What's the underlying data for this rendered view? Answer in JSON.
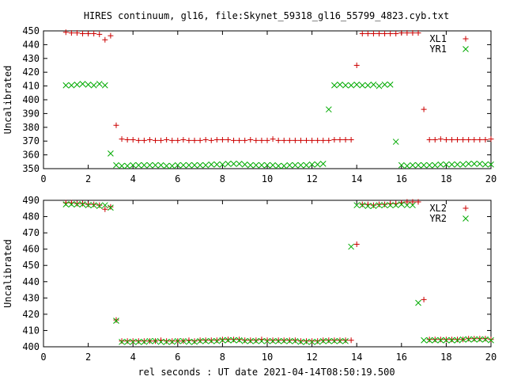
{
  "title": "HIRES continuum, gl16, file:Skynet_59318_gl16_55799_4823.cyb.txt",
  "xlabel": "rel seconds : UT date 2021-04-14T08:50:19.500",
  "chart_data": [
    {
      "type": "scatter",
      "ylabel": "Uncalibrated",
      "xlim": [
        0,
        20
      ],
      "ylim": [
        350,
        450
      ],
      "xticks": [
        0,
        2,
        4,
        6,
        8,
        10,
        12,
        14,
        16,
        18,
        20
      ],
      "yticks": [
        350,
        360,
        370,
        380,
        390,
        400,
        410,
        420,
        430,
        440,
        450
      ],
      "grid": false,
      "legend_position": "top-right",
      "series": [
        {
          "name": "XL1",
          "marker": "+",
          "color": "#cc0000",
          "x": [
            1.0,
            1.25,
            1.5,
            1.75,
            2.0,
            2.25,
            2.5,
            2.75,
            3.0,
            3.25,
            3.5,
            3.75,
            4.0,
            4.25,
            4.5,
            4.75,
            5.0,
            5.25,
            5.5,
            5.75,
            6.0,
            6.25,
            6.5,
            6.75,
            7.0,
            7.25,
            7.5,
            7.75,
            8.0,
            8.25,
            8.5,
            8.75,
            9.0,
            9.25,
            9.5,
            9.75,
            10.0,
            10.25,
            10.5,
            10.75,
            11.0,
            11.25,
            11.5,
            11.75,
            12.0,
            12.25,
            12.5,
            12.75,
            13.0,
            13.25,
            13.5,
            13.75,
            14.0,
            14.25,
            14.5,
            14.75,
            15.0,
            15.25,
            15.5,
            15.75,
            16.0,
            16.25,
            16.5,
            16.75,
            17.0,
            17.25,
            17.5,
            17.75,
            18.0,
            18.25,
            18.5,
            18.75,
            19.0,
            19.25,
            19.5,
            19.75,
            20.0
          ],
          "y": [
            449,
            448.5,
            448.5,
            448,
            448,
            448,
            447.5,
            443.5,
            446.5,
            381.5,
            371.5,
            371,
            371,
            370.5,
            370.5,
            371,
            370.5,
            370.5,
            371,
            370.5,
            370.5,
            371,
            370.5,
            370.5,
            370.5,
            371,
            370.5,
            371,
            371,
            371,
            370.5,
            370.5,
            370.5,
            371,
            370.5,
            370.5,
            370.5,
            371.5,
            370.5,
            370.5,
            370.5,
            370.5,
            370.5,
            370.5,
            370.5,
            370.5,
            370.5,
            370.5,
            371,
            371,
            371,
            371,
            425,
            448,
            448,
            448,
            448,
            448,
            448,
            448,
            448.5,
            448.5,
            448.5,
            448.5,
            393,
            371,
            371,
            371.5,
            371,
            371,
            371,
            371,
            371,
            371,
            371,
            371,
            371.5
          ]
        },
        {
          "name": "YR1",
          "marker": "x",
          "color": "#00aa00",
          "x": [
            1.0,
            1.25,
            1.5,
            1.75,
            2.0,
            2.25,
            2.5,
            2.75,
            3.0,
            3.25,
            3.5,
            3.75,
            4.0,
            4.25,
            4.5,
            4.75,
            5.0,
            5.25,
            5.5,
            5.75,
            6.0,
            6.25,
            6.5,
            6.75,
            7.0,
            7.25,
            7.5,
            7.75,
            8.0,
            8.25,
            8.5,
            8.75,
            9.0,
            9.25,
            9.5,
            9.75,
            10.0,
            10.25,
            10.5,
            10.75,
            11.0,
            11.25,
            11.5,
            11.75,
            12.0,
            12.25,
            12.5,
            12.75,
            13.0,
            13.25,
            13.5,
            13.75,
            14.0,
            14.25,
            14.5,
            14.75,
            15.0,
            15.25,
            15.5,
            15.75,
            16.0,
            16.25,
            16.5,
            16.75,
            17.0,
            17.25,
            17.5,
            17.75,
            18.0,
            18.25,
            18.5,
            18.75,
            19.0,
            19.25,
            19.5,
            19.75,
            20.0
          ],
          "y": [
            410.5,
            410.5,
            411,
            411.5,
            411,
            410.5,
            411.5,
            410.5,
            361,
            352.5,
            352,
            352,
            352.5,
            352.5,
            352.5,
            352.5,
            352.5,
            352.5,
            352,
            352,
            352.5,
            352.5,
            352.5,
            352.5,
            352.5,
            352.5,
            353,
            353,
            353,
            353.5,
            353.5,
            353.5,
            353,
            352.5,
            352.5,
            352.5,
            352.5,
            352.5,
            352,
            352,
            352.5,
            352.5,
            352.5,
            352.5,
            353,
            353,
            353.5,
            393,
            410.5,
            411,
            410.5,
            410.5,
            411,
            410.5,
            410.5,
            411,
            410,
            411,
            411,
            369.5,
            352.5,
            352,
            352.5,
            352.5,
            352.5,
            352.5,
            352.5,
            353,
            353,
            353,
            353,
            353,
            353.5,
            353.5,
            353.5,
            353,
            353
          ]
        }
      ]
    },
    {
      "type": "scatter",
      "ylabel": "Uncalibrated",
      "xlim": [
        0,
        20
      ],
      "ylim": [
        400,
        490
      ],
      "xticks": [
        0,
        2,
        4,
        6,
        8,
        10,
        12,
        14,
        16,
        18,
        20
      ],
      "yticks": [
        400,
        410,
        420,
        430,
        440,
        450,
        460,
        470,
        480,
        490
      ],
      "grid": false,
      "legend_position": "top-right",
      "series": [
        {
          "name": "XL2",
          "marker": "+",
          "color": "#cc0000",
          "x": [
            1.0,
            1.25,
            1.5,
            1.75,
            2.0,
            2.25,
            2.5,
            2.75,
            3.0,
            3.25,
            3.5,
            3.75,
            4.0,
            4.25,
            4.5,
            4.75,
            5.0,
            5.25,
            5.5,
            5.75,
            6.0,
            6.25,
            6.5,
            6.75,
            7.0,
            7.25,
            7.5,
            7.75,
            8.0,
            8.25,
            8.5,
            8.75,
            9.0,
            9.25,
            9.5,
            9.75,
            10.0,
            10.25,
            10.5,
            10.75,
            11.0,
            11.25,
            11.5,
            11.75,
            12.0,
            12.25,
            12.5,
            12.75,
            13.0,
            13.25,
            13.5,
            13.75,
            14.0,
            14.25,
            14.5,
            14.75,
            15.0,
            15.25,
            15.5,
            15.75,
            16.0,
            16.25,
            16.5,
            16.75,
            17.0,
            17.25,
            17.5,
            17.75,
            18.0,
            18.25,
            18.5,
            18.75,
            19.0,
            19.25,
            19.5,
            19.75,
            20.0
          ],
          "y": [
            488.5,
            488.5,
            488,
            488,
            487.5,
            487.5,
            487,
            484.5,
            486,
            416.5,
            403.5,
            403.5,
            403.5,
            403.5,
            403.5,
            403.5,
            403.5,
            404,
            403.5,
            403.5,
            403.5,
            403.5,
            404,
            403.5,
            404,
            404,
            404,
            404,
            404.5,
            404.5,
            404.5,
            404.5,
            404,
            404,
            404,
            404.5,
            404,
            404,
            404,
            404,
            404,
            404,
            403.5,
            403.5,
            403.5,
            403.5,
            404,
            404,
            404,
            404,
            404,
            404,
            463,
            487.5,
            487.5,
            487,
            487.5,
            487.5,
            488,
            488,
            488.5,
            489,
            489,
            489,
            429,
            404.5,
            404.5,
            404.5,
            404.5,
            404.5,
            404.5,
            404.5,
            405,
            405,
            405,
            405,
            404.5
          ]
        },
        {
          "name": "YR2",
          "marker": "x",
          "color": "#00aa00",
          "x": [
            1.0,
            1.25,
            1.5,
            1.75,
            2.0,
            2.25,
            2.5,
            2.75,
            3.0,
            3.25,
            3.5,
            3.75,
            4.0,
            4.25,
            4.5,
            4.75,
            5.0,
            5.25,
            5.5,
            5.75,
            6.0,
            6.25,
            6.5,
            6.75,
            7.0,
            7.25,
            7.5,
            7.75,
            8.0,
            8.25,
            8.5,
            8.75,
            9.0,
            9.25,
            9.5,
            9.75,
            10.0,
            10.25,
            10.5,
            10.75,
            11.0,
            11.25,
            11.5,
            11.75,
            12.0,
            12.25,
            12.5,
            12.75,
            13.0,
            13.25,
            13.5,
            13.75,
            14.0,
            14.25,
            14.5,
            14.75,
            15.0,
            15.25,
            15.5,
            15.75,
            16.0,
            16.25,
            16.5,
            16.75,
            17.0,
            17.25,
            17.5,
            17.75,
            18.0,
            18.25,
            18.5,
            18.75,
            19.0,
            19.25,
            19.5,
            19.75,
            20.0
          ],
          "y": [
            487.5,
            487.5,
            487.5,
            487.5,
            487,
            487,
            486.5,
            487,
            485.5,
            416,
            403,
            403,
            403,
            403,
            403,
            403.5,
            403.5,
            403,
            403,
            403,
            403.5,
            403.5,
            403,
            403,
            403.5,
            403.5,
            403.5,
            403.5,
            404,
            404,
            404,
            404,
            403.5,
            403.5,
            403.5,
            403.5,
            403.5,
            403.5,
            403.5,
            403.5,
            403.5,
            403.5,
            403,
            403,
            403,
            403,
            403.5,
            403.5,
            403.5,
            403.5,
            403.5,
            461.5,
            487,
            487,
            486.5,
            486.5,
            487,
            487,
            487,
            487,
            487.5,
            487,
            487,
            427,
            404,
            404,
            404,
            404,
            404,
            404,
            404,
            404.5,
            404.5,
            404.5,
            404.5,
            404.5,
            404
          ]
        }
      ]
    }
  ]
}
